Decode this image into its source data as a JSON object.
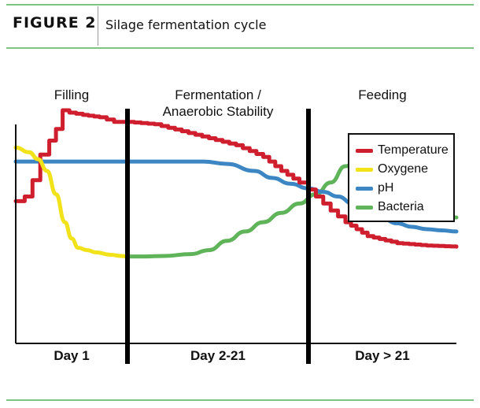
{
  "header": {
    "figure_label": "FIGURE 2",
    "title": "Silage fermentation cycle"
  },
  "colors": {
    "rule": "#7cc47f",
    "temperature": "#cf1f2e",
    "oxygene": "#f2e21a",
    "ph": "#3b86c3",
    "bacteria": "#5fb45a"
  },
  "chart_data": {
    "type": "line",
    "title": "",
    "xlabel": "",
    "ylabel": "",
    "grid": false,
    "legend_placement": "right",
    "phases": [
      {
        "label_lines": [
          "Filling"
        ],
        "x_range": [
          0,
          1
        ]
      },
      {
        "label_lines": [
          "Fermentation /",
          "Anaerobic Stability"
        ],
        "x_range": [
          1,
          2
        ]
      },
      {
        "label_lines": [
          "Feeding"
        ],
        "x_range": [
          2,
          3
        ]
      }
    ],
    "x_tick_labels": [
      "Day 1",
      "Day 2-21",
      "Day > 21"
    ],
    "x_range": [
      0,
      3
    ],
    "y_range": [
      0,
      100
    ],
    "series": [
      {
        "name": "Temperature",
        "color": "#cf1f2e",
        "stepped": true,
        "points": [
          [
            0,
            61
          ],
          [
            0.08,
            63
          ],
          [
            0.15,
            70
          ],
          [
            0.22,
            81
          ],
          [
            0.3,
            87
          ],
          [
            0.36,
            92
          ],
          [
            0.42,
            100
          ],
          [
            0.48,
            99
          ],
          [
            0.6,
            98
          ],
          [
            0.75,
            97
          ],
          [
            0.88,
            95
          ],
          [
            1,
            95
          ],
          [
            1.15,
            94
          ],
          [
            1.3,
            91
          ],
          [
            1.45,
            88
          ],
          [
            1.6,
            85
          ],
          [
            1.75,
            80
          ],
          [
            1.85,
            74
          ],
          [
            1.95,
            69
          ],
          [
            2,
            66
          ],
          [
            2.05,
            63
          ],
          [
            2.1,
            60
          ],
          [
            2.15,
            57
          ],
          [
            2.25,
            52
          ],
          [
            2.4,
            46
          ],
          [
            2.6,
            43
          ],
          [
            2.8,
            42
          ],
          [
            3,
            41.5
          ]
        ]
      },
      {
        "name": "Oxygene",
        "color": "#f2e21a",
        "stepped": false,
        "points": [
          [
            0,
            84
          ],
          [
            0.12,
            82
          ],
          [
            0.2,
            79
          ],
          [
            0.28,
            74
          ],
          [
            0.36,
            64
          ],
          [
            0.44,
            52
          ],
          [
            0.5,
            45
          ],
          [
            0.56,
            41
          ],
          [
            0.64,
            40
          ],
          [
            0.72,
            39
          ],
          [
            0.85,
            38
          ],
          [
            0.95,
            37.5
          ],
          [
            1,
            37.3
          ]
        ]
      },
      {
        "name": "pH",
        "color": "#3b86c3",
        "stepped": false,
        "points": [
          [
            0,
            78
          ],
          [
            0.2,
            78
          ],
          [
            0.5,
            78
          ],
          [
            0.8,
            78
          ],
          [
            1,
            78
          ],
          [
            1.3,
            78
          ],
          [
            1.42,
            78
          ],
          [
            1.55,
            77
          ],
          [
            1.7,
            74
          ],
          [
            1.8,
            71
          ],
          [
            1.9,
            68.5
          ],
          [
            2,
            66.5
          ],
          [
            2.1,
            65
          ],
          [
            2.2,
            63
          ],
          [
            2.3,
            60
          ],
          [
            2.4,
            56
          ],
          [
            2.5,
            53.5
          ],
          [
            2.6,
            51.5
          ],
          [
            2.7,
            50
          ],
          [
            2.8,
            49
          ],
          [
            2.9,
            48.5
          ],
          [
            3,
            48
          ]
        ]
      },
      {
        "name": "Bacteria",
        "color": "#5fb45a",
        "stepped": false,
        "points": [
          [
            1,
            37.3
          ],
          [
            1.1,
            37.3
          ],
          [
            1.2,
            37.5
          ],
          [
            1.35,
            38.3
          ],
          [
            1.45,
            40
          ],
          [
            1.55,
            44
          ],
          [
            1.65,
            48
          ],
          [
            1.75,
            52
          ],
          [
            1.85,
            56
          ],
          [
            1.95,
            60
          ],
          [
            2.05,
            64
          ],
          [
            2.15,
            69
          ],
          [
            2.25,
            76
          ],
          [
            2.35,
            80
          ],
          [
            2.45,
            83
          ],
          [
            2.55,
            85
          ],
          [
            2.6,
            84
          ],
          [
            2.65,
            80
          ],
          [
            2.72,
            72
          ],
          [
            2.78,
            63
          ],
          [
            2.85,
            57
          ],
          [
            2.92,
            55
          ],
          [
            3,
            54
          ]
        ]
      }
    ],
    "legend": [
      "Temperature",
      "Oxygene",
      "pH",
      "Bacteria"
    ]
  }
}
